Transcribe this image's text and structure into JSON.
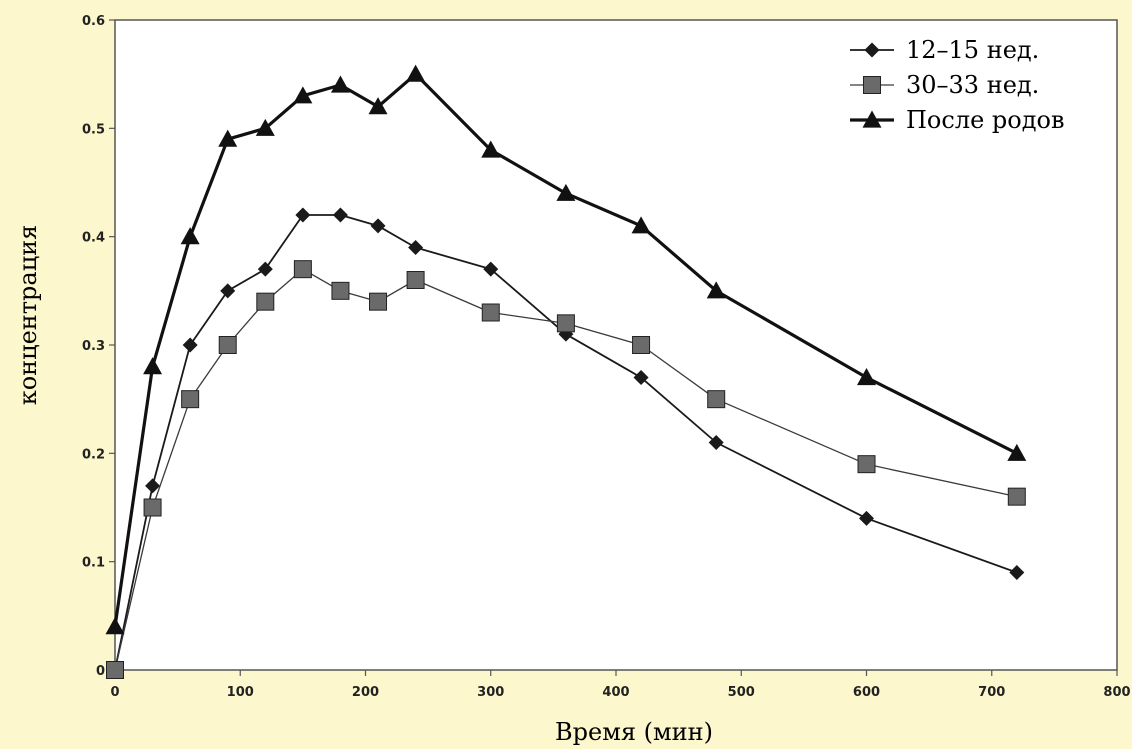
{
  "chart_data": {
    "type": "line",
    "title": "",
    "xlabel": "Время (мин)",
    "ylabel": "концентрация",
    "xlim": [
      0,
      800
    ],
    "ylim": [
      0,
      0.6
    ],
    "x_ticks": [
      "0",
      "100",
      "200",
      "300",
      "400",
      "500",
      "600",
      "700",
      "800"
    ],
    "y_ticks": [
      "0",
      "0.1",
      "0.2",
      "0.3",
      "0.4",
      "0.5",
      "0.6"
    ],
    "grid": false,
    "legend_position": "top-right",
    "series": [
      {
        "name": "12–15 нед.",
        "marker": "diamond",
        "color": "#1a1a1a",
        "x": [
          0,
          30,
          60,
          90,
          120,
          150,
          180,
          210,
          240,
          300,
          360,
          420,
          480,
          600,
          720
        ],
        "values": [
          0,
          0.17,
          0.3,
          0.35,
          0.37,
          0.42,
          0.42,
          0.41,
          0.39,
          0.37,
          0.31,
          0.27,
          0.21,
          0.14,
          0.09
        ]
      },
      {
        "name": "30–33 нед.",
        "marker": "square",
        "color": "#3a3a3a",
        "x": [
          0,
          30,
          60,
          90,
          120,
          150,
          180,
          210,
          240,
          300,
          360,
          420,
          480,
          600,
          720
        ],
        "values": [
          0,
          0.15,
          0.25,
          0.3,
          0.34,
          0.37,
          0.35,
          0.34,
          0.36,
          0.33,
          0.32,
          0.3,
          0.25,
          0.19,
          0.16
        ]
      },
      {
        "name": "После родов",
        "marker": "triangle",
        "color": "#111111",
        "x": [
          0,
          30,
          60,
          90,
          120,
          150,
          180,
          210,
          240,
          300,
          360,
          420,
          480,
          600,
          720
        ],
        "values": [
          0.04,
          0.28,
          0.4,
          0.49,
          0.5,
          0.53,
          0.54,
          0.52,
          0.55,
          0.48,
          0.44,
          0.41,
          0.35,
          0.27,
          0.2
        ]
      }
    ]
  }
}
